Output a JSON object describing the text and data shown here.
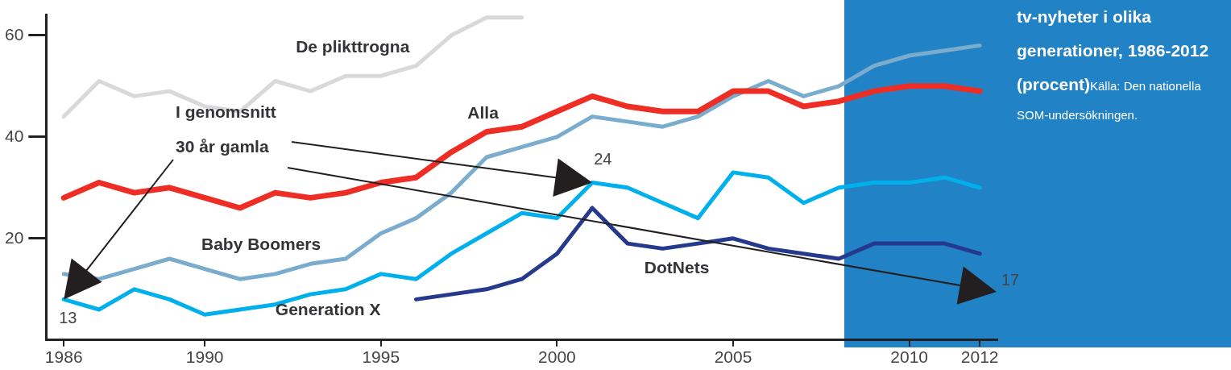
{
  "chart_data": {
    "type": "line",
    "title": "tv-nyheter i olika generationer, 1986-2012 (procent)",
    "annotations": [
      "I genomsnitt 30 år gamla",
      {
        "text": "13",
        "x": 1986,
        "y": 8
      },
      {
        "text": "24",
        "x": 2001,
        "y": 31
      },
      "17",
      "Källa: Den nationella SOM-undersökningen."
    ],
    "x": [
      1986,
      1987,
      1988,
      1989,
      1990,
      1991,
      1992,
      1993,
      1994,
      1995,
      1996,
      1997,
      1998,
      1999,
      2000,
      2001,
      2002,
      2003,
      2004,
      2005,
      2006,
      2007,
      2008,
      2009,
      2010,
      2011,
      2012
    ],
    "xlim": [
      1985.5,
      2012.5
    ],
    "xticks": [
      1986,
      1990,
      1995,
      2000,
      2005,
      2010,
      2012
    ],
    "ylim": [
      0,
      64
    ],
    "yticks": [
      20,
      40,
      60
    ],
    "grid": false,
    "legend": false,
    "marker": "none",
    "line_style": "solid",
    "series": [
      {
        "name": "De plikttrogna",
        "color": "#d9d9d9",
        "values": [
          44,
          51,
          48,
          49,
          46,
          45,
          51,
          49,
          52,
          52,
          54,
          60,
          63.5,
          63.5,
          null,
          null,
          null,
          null,
          null,
          null,
          null,
          null,
          null,
          null,
          null,
          null,
          null
        ]
      },
      {
        "name": "Alla",
        "color": "#ee2e24",
        "values": [
          28,
          31,
          29,
          30,
          28,
          26,
          29,
          28,
          29,
          31,
          32,
          37,
          41,
          42,
          45,
          48,
          46,
          45,
          45,
          49,
          49,
          46,
          47,
          49,
          50,
          50,
          49
        ]
      },
      {
        "name": "Baby Boomers",
        "color": "#7aaccd",
        "values": [
          13,
          12,
          14,
          16,
          14,
          12,
          13,
          15,
          16,
          21,
          24,
          29,
          36,
          38,
          40,
          44,
          43,
          42,
          44,
          48,
          51,
          48,
          50,
          54,
          56,
          57,
          58
        ]
      },
      {
        "name": "Generation X",
        "color": "#00b0ec",
        "values": [
          8,
          6,
          10,
          8,
          5,
          6,
          7,
          9,
          10,
          13,
          12,
          17,
          21,
          25,
          24,
          31,
          30,
          27,
          24,
          33,
          32,
          27,
          30,
          31,
          31,
          32,
          30
        ]
      },
      {
        "name": "DotNets",
        "color": "#253a8f",
        "values": [
          null,
          null,
          null,
          null,
          null,
          null,
          null,
          null,
          null,
          null,
          8,
          9,
          10,
          12,
          17,
          26,
          19,
          18,
          19,
          20,
          18,
          17,
          16,
          19,
          19,
          19,
          17
        ]
      }
    ]
  }
}
